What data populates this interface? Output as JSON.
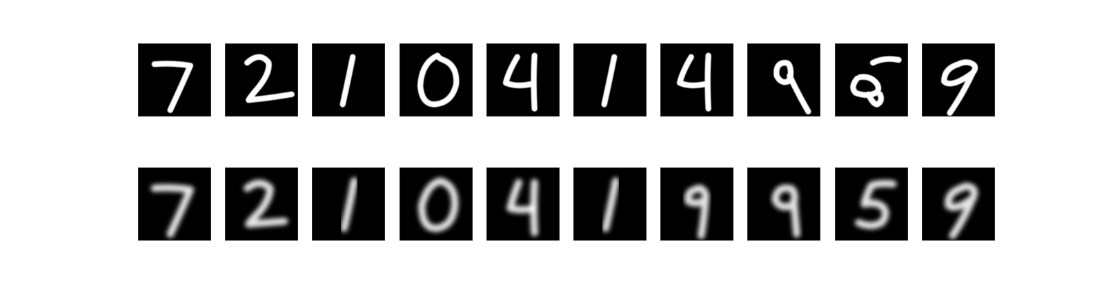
{
  "figure": {
    "background_color": "#ffffff",
    "cell_color": "#000000",
    "stroke_color": "#ffffff",
    "rows": [
      {
        "name": "original-digits",
        "blur": 0.6,
        "stroke": 8,
        "digits": [
          7,
          2,
          1,
          0,
          4,
          1,
          4,
          9,
          5,
          9
        ]
      },
      {
        "name": "reconstructed-digits",
        "blur": 3.2,
        "stroke": 10,
        "digits": [
          7,
          2,
          1,
          0,
          4,
          1,
          9,
          9,
          5,
          9
        ]
      }
    ]
  }
}
